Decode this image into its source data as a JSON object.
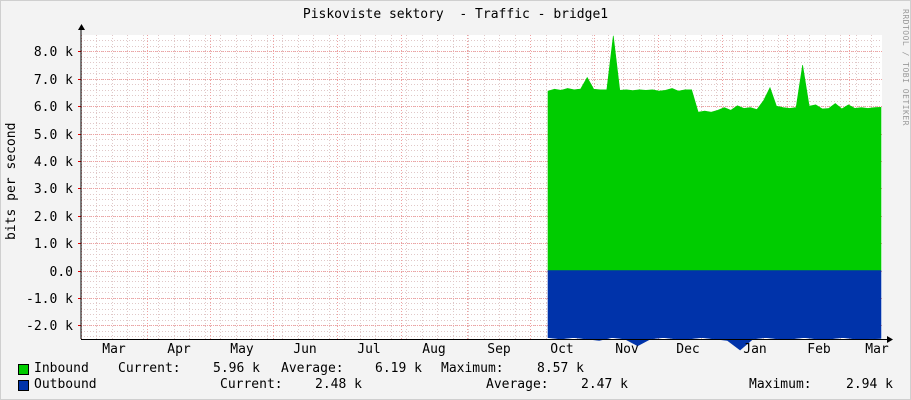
{
  "header": {
    "title": "Piskoviste sektory  - Traffic - bridge1",
    "watermark": "RRDTOOL / TOBI OETIKER"
  },
  "colors": {
    "inbound": "#00cc00",
    "outbound": "#0033aa",
    "grid_minor": "#e0c8c8",
    "grid_major": "#f0a0a0",
    "plot_bg": "#ffffff"
  },
  "chart_data": {
    "type": "area",
    "ylabel": "bits per second",
    "ylim": [
      -2.5,
      8.6
    ],
    "y_unit": "k",
    "y_ticks": [
      {
        "value": 8,
        "label": "8.0 k"
      },
      {
        "value": 7,
        "label": "7.0 k"
      },
      {
        "value": 6,
        "label": "6.0 k"
      },
      {
        "value": 5,
        "label": "5.0 k"
      },
      {
        "value": 4,
        "label": "4.0 k"
      },
      {
        "value": 3,
        "label": "3.0 k"
      },
      {
        "value": 2,
        "label": "2.0 k"
      },
      {
        "value": 1,
        "label": "1.0 k"
      },
      {
        "value": 0,
        "label": "0.0"
      },
      {
        "value": -1,
        "label": "-1.0 k"
      },
      {
        "value": -2,
        "label": "-2.0 k"
      }
    ],
    "x_ticks": [
      "Mar",
      "Apr",
      "May",
      "Jun",
      "Jul",
      "Aug",
      "Sep",
      "Oct",
      "Nov",
      "Dec",
      "Jan",
      "Feb",
      "Mar"
    ],
    "grid": true,
    "series": [
      {
        "name": "Inbound",
        "points": [
          [
            "Oct",
            6.55
          ],
          [
            "Oct",
            6.62
          ],
          [
            "Oct",
            6.58
          ],
          [
            "Oct",
            6.65
          ],
          [
            "Oct",
            6.6
          ],
          [
            "Oct",
            6.63
          ],
          [
            "Oct",
            7.05
          ],
          [
            "Oct",
            6.62
          ],
          [
            "Oct",
            6.6
          ],
          [
            "Oct",
            6.6
          ],
          [
            "Oct",
            8.57
          ],
          [
            "Oct",
            6.58
          ],
          [
            "Nov",
            6.6
          ],
          [
            "Nov",
            6.57
          ],
          [
            "Nov",
            6.6
          ],
          [
            "Nov",
            6.58
          ],
          [
            "Nov",
            6.6
          ],
          [
            "Nov",
            6.55
          ],
          [
            "Nov",
            6.58
          ],
          [
            "Nov",
            6.65
          ],
          [
            "Nov",
            6.55
          ],
          [
            "Nov",
            6.6
          ],
          [
            "Nov",
            6.6
          ],
          [
            "Dec",
            5.78
          ],
          [
            "Dec",
            5.82
          ],
          [
            "Dec",
            5.78
          ],
          [
            "Dec",
            5.85
          ],
          [
            "Dec",
            5.95
          ],
          [
            "Dec",
            5.85
          ],
          [
            "Dec",
            6.02
          ],
          [
            "Dec",
            5.92
          ],
          [
            "Dec",
            5.95
          ],
          [
            "Dec",
            5.88
          ],
          [
            "Jan",
            6.2
          ],
          [
            "Jan",
            6.68
          ],
          [
            "Jan",
            6.0
          ],
          [
            "Jan",
            5.95
          ],
          [
            "Jan",
            5.92
          ],
          [
            "Jan",
            5.95
          ],
          [
            "Jan",
            7.5
          ],
          [
            "Jan",
            6.0
          ],
          [
            "Jan",
            6.05
          ],
          [
            "Jan",
            5.9
          ],
          [
            "Feb",
            5.92
          ],
          [
            "Feb",
            6.1
          ],
          [
            "Feb",
            5.9
          ],
          [
            "Feb",
            6.05
          ],
          [
            "Feb",
            5.92
          ],
          [
            "Feb",
            5.95
          ],
          [
            "Feb",
            5.92
          ],
          [
            "Feb",
            5.95
          ],
          [
            "Mar",
            5.96
          ]
        ]
      },
      {
        "name": "Outbound",
        "points": [
          [
            "Oct",
            -2.45
          ],
          [
            "Oct",
            -2.5
          ],
          [
            "Oct",
            -2.45
          ],
          [
            "Oct",
            -2.5
          ],
          [
            "Oct",
            -2.55
          ],
          [
            "Oct",
            -2.45
          ],
          [
            "Oct",
            -2.5
          ],
          [
            "Oct",
            -2.75
          ],
          [
            "Nov",
            -2.5
          ],
          [
            "Nov",
            -2.45
          ],
          [
            "Nov",
            -2.5
          ],
          [
            "Nov",
            -2.5
          ],
          [
            "Nov",
            -2.45
          ],
          [
            "Nov",
            -2.5
          ],
          [
            "Dec",
            -2.55
          ],
          [
            "Dec",
            -2.9
          ],
          [
            "Dec",
            -2.5
          ],
          [
            "Dec",
            -2.45
          ],
          [
            "Jan",
            -2.5
          ],
          [
            "Jan",
            -2.5
          ],
          [
            "Jan",
            -2.45
          ],
          [
            "Jan",
            -2.5
          ],
          [
            "Feb",
            -2.5
          ],
          [
            "Feb",
            -2.45
          ],
          [
            "Feb",
            -2.5
          ],
          [
            "Feb",
            -2.5
          ],
          [
            "Mar",
            -2.48
          ]
        ]
      }
    ]
  },
  "legend": {
    "inbound": {
      "label": "Inbound",
      "current_label": "Current:",
      "current": "5.96 k",
      "average_label": "Average:",
      "average": "6.19 k",
      "maximum_label": "Maximum:",
      "maximum": "8.57 k"
    },
    "outbound": {
      "label": "Outbound",
      "current_label": "Current:",
      "current": "2.48 k",
      "average_label": "Average:",
      "average": "2.47 k",
      "maximum_label": "Maximum:",
      "maximum": "2.94 k"
    }
  }
}
